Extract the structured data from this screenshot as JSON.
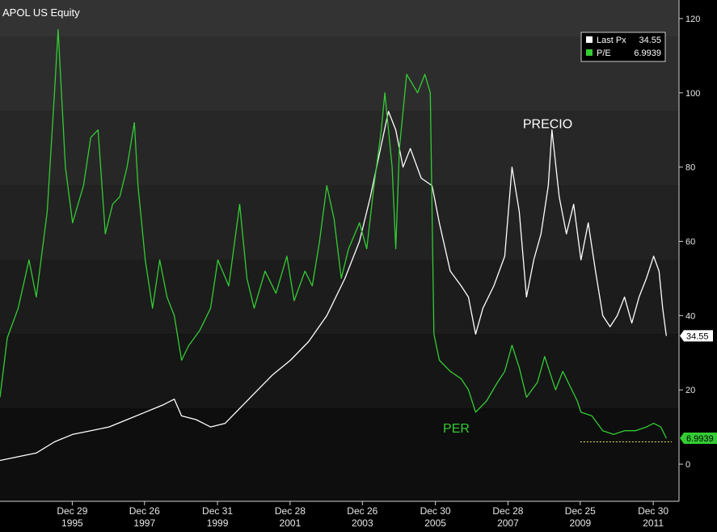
{
  "chart_data": {
    "type": "line",
    "title": "APOL US Equity",
    "xlabel": "",
    "ylabel": "",
    "ylim": [
      -10,
      125
    ],
    "y_ticks": [
      0,
      20,
      40,
      60,
      80,
      100,
      120
    ],
    "x_ticks": [
      {
        "line1": "Dec 29",
        "line2": "1995",
        "x": 1995.99
      },
      {
        "line1": "Dec 26",
        "line2": "1997",
        "x": 1997.98
      },
      {
        "line1": "Dec 31",
        "line2": "1999",
        "x": 1999.99
      },
      {
        "line1": "Dec 28",
        "line2": "2001",
        "x": 2001.99
      },
      {
        "line1": "Dec 26",
        "line2": "2003",
        "x": 2003.98
      },
      {
        "line1": "Dec 30",
        "line2": "2005",
        "x": 2005.99
      },
      {
        "line1": "Dec 28",
        "line2": "2007",
        "x": 2007.99
      },
      {
        "line1": "Dec 25",
        "line2": "2009",
        "x": 2009.98
      },
      {
        "line1": "Dec 30",
        "line2": "2011",
        "x": 2011.99
      }
    ],
    "xlim": [
      1994.0,
      2012.7
    ],
    "grid": false,
    "legend_position": "top-right",
    "legend": [
      {
        "name": "Last Px",
        "value": "34.55",
        "color": "#ffffff"
      },
      {
        "name": "P/E",
        "value": "6.9939",
        "color": "#33cc33"
      }
    ],
    "last_value_badges": [
      {
        "text": "34.55",
        "value": 34.55,
        "bg": "#ffffff"
      },
      {
        "text": "6.9939",
        "value": 6.9939,
        "bg": "#33cc33"
      }
    ],
    "annotations": [
      {
        "text": "PRECIO",
        "color": "#ffffff"
      },
      {
        "text": "PER",
        "color": "#33cc33"
      }
    ],
    "reference_line": {
      "y": 6.0,
      "x_start": 2009.98,
      "x_end": 2012.5,
      "color": "#e6e65a"
    },
    "series": [
      {
        "name": "Last Px",
        "color": "#ffffff",
        "points": [
          [
            1994.0,
            1
          ],
          [
            1994.5,
            2
          ],
          [
            1995.0,
            3
          ],
          [
            1995.5,
            6
          ],
          [
            1996.0,
            8
          ],
          [
            1996.5,
            9
          ],
          [
            1997.0,
            10
          ],
          [
            1997.5,
            12
          ],
          [
            1998.0,
            14
          ],
          [
            1998.5,
            16
          ],
          [
            1998.8,
            17.5
          ],
          [
            1999.0,
            13
          ],
          [
            1999.4,
            12
          ],
          [
            1999.8,
            10
          ],
          [
            2000.2,
            11
          ],
          [
            2000.6,
            15
          ],
          [
            2001.0,
            19
          ],
          [
            2001.5,
            24
          ],
          [
            2002.0,
            28
          ],
          [
            2002.5,
            33
          ],
          [
            2003.0,
            40
          ],
          [
            2003.5,
            50
          ],
          [
            2003.9,
            60
          ],
          [
            2004.2,
            72
          ],
          [
            2004.5,
            86
          ],
          [
            2004.7,
            95
          ],
          [
            2004.9,
            90
          ],
          [
            2005.1,
            80
          ],
          [
            2005.3,
            85
          ],
          [
            2005.6,
            77
          ],
          [
            2005.9,
            75
          ],
          [
            2006.1,
            65
          ],
          [
            2006.4,
            52
          ],
          [
            2006.7,
            48
          ],
          [
            2006.9,
            45
          ],
          [
            2007.1,
            35
          ],
          [
            2007.3,
            42
          ],
          [
            2007.6,
            48
          ],
          [
            2007.9,
            56
          ],
          [
            2008.1,
            80
          ],
          [
            2008.3,
            68
          ],
          [
            2008.5,
            45
          ],
          [
            2008.7,
            55
          ],
          [
            2008.9,
            62
          ],
          [
            2009.1,
            75
          ],
          [
            2009.2,
            90
          ],
          [
            2009.4,
            72
          ],
          [
            2009.6,
            62
          ],
          [
            2009.8,
            70
          ],
          [
            2010.0,
            55
          ],
          [
            2010.2,
            65
          ],
          [
            2010.4,
            52
          ],
          [
            2010.6,
            40
          ],
          [
            2010.8,
            37
          ],
          [
            2011.0,
            40
          ],
          [
            2011.2,
            45
          ],
          [
            2011.4,
            38
          ],
          [
            2011.6,
            45
          ],
          [
            2011.8,
            50
          ],
          [
            2012.0,
            56
          ],
          [
            2012.15,
            52
          ],
          [
            2012.25,
            42
          ],
          [
            2012.35,
            34.55
          ]
        ]
      },
      {
        "name": "P/E",
        "color": "#33cc33",
        "points": [
          [
            1994.0,
            18
          ],
          [
            1994.2,
            34
          ],
          [
            1994.5,
            42
          ],
          [
            1994.8,
            55
          ],
          [
            1995.0,
            45
          ],
          [
            1995.3,
            68
          ],
          [
            1995.5,
            100
          ],
          [
            1995.6,
            117
          ],
          [
            1995.8,
            80
          ],
          [
            1996.0,
            65
          ],
          [
            1996.3,
            75
          ],
          [
            1996.5,
            88
          ],
          [
            1996.7,
            90
          ],
          [
            1996.9,
            62
          ],
          [
            1997.1,
            70
          ],
          [
            1997.3,
            72
          ],
          [
            1997.5,
            80
          ],
          [
            1997.7,
            92
          ],
          [
            1997.8,
            75
          ],
          [
            1998.0,
            55
          ],
          [
            1998.2,
            42
          ],
          [
            1998.4,
            55
          ],
          [
            1998.6,
            45
          ],
          [
            1998.8,
            40
          ],
          [
            1999.0,
            28
          ],
          [
            1999.2,
            32
          ],
          [
            1999.5,
            36
          ],
          [
            1999.8,
            42
          ],
          [
            2000.0,
            55
          ],
          [
            2000.3,
            48
          ],
          [
            2000.6,
            70
          ],
          [
            2000.8,
            50
          ],
          [
            2001.0,
            42
          ],
          [
            2001.3,
            52
          ],
          [
            2001.6,
            46
          ],
          [
            2001.9,
            56
          ],
          [
            2002.1,
            44
          ],
          [
            2002.4,
            52
          ],
          [
            2002.6,
            48
          ],
          [
            2002.8,
            60
          ],
          [
            2003.0,
            75
          ],
          [
            2003.2,
            66
          ],
          [
            2003.4,
            50
          ],
          [
            2003.6,
            58
          ],
          [
            2003.9,
            65
          ],
          [
            2004.1,
            58
          ],
          [
            2004.3,
            75
          ],
          [
            2004.5,
            90
          ],
          [
            2004.6,
            100
          ],
          [
            2004.8,
            80
          ],
          [
            2004.9,
            58
          ],
          [
            2005.0,
            85
          ],
          [
            2005.2,
            105
          ],
          [
            2005.5,
            100
          ],
          [
            2005.7,
            105
          ],
          [
            2005.85,
            100
          ],
          [
            2005.95,
            35
          ],
          [
            2006.1,
            28
          ],
          [
            2006.4,
            25
          ],
          [
            2006.7,
            23
          ],
          [
            2006.9,
            20
          ],
          [
            2007.1,
            14
          ],
          [
            2007.4,
            17
          ],
          [
            2007.7,
            22
          ],
          [
            2007.9,
            25
          ],
          [
            2008.1,
            32
          ],
          [
            2008.3,
            26
          ],
          [
            2008.5,
            18
          ],
          [
            2008.8,
            22
          ],
          [
            2009.0,
            29
          ],
          [
            2009.3,
            20
          ],
          [
            2009.5,
            25
          ],
          [
            2009.7,
            21
          ],
          [
            2009.9,
            17
          ],
          [
            2010.0,
            14
          ],
          [
            2010.3,
            13
          ],
          [
            2010.6,
            9
          ],
          [
            2010.9,
            8
          ],
          [
            2011.2,
            9
          ],
          [
            2011.5,
            9
          ],
          [
            2011.8,
            10
          ],
          [
            2012.0,
            11
          ],
          [
            2012.2,
            10
          ],
          [
            2012.35,
            6.9939
          ]
        ]
      }
    ]
  }
}
